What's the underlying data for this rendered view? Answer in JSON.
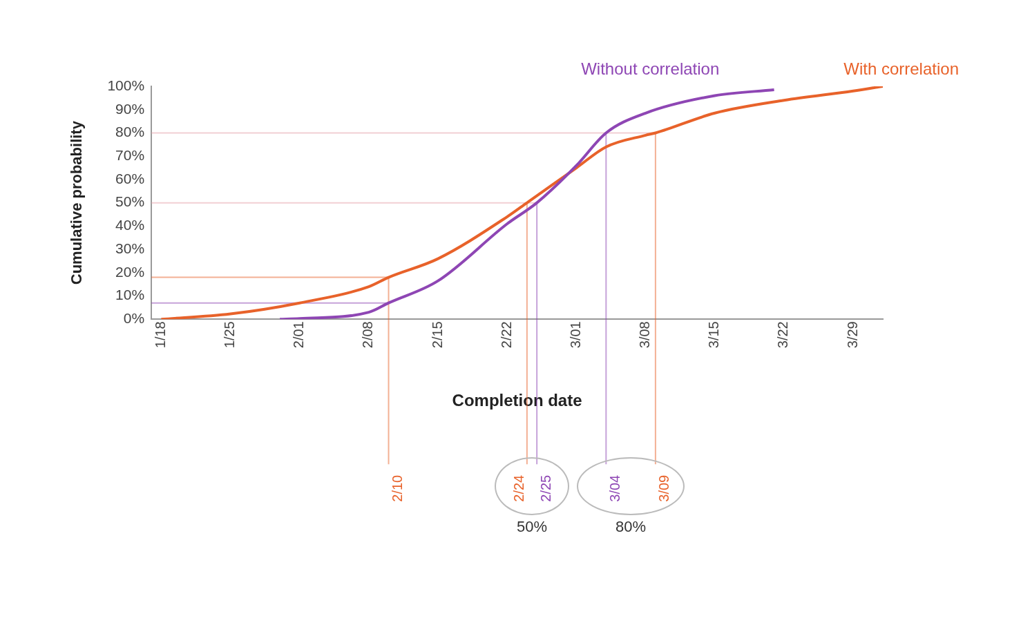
{
  "chart_data": {
    "type": "line",
    "xlabel": "Completion date",
    "ylabel": "Cumulative probability",
    "series": [
      {
        "name": "Without correlation",
        "color": "#8e46b4",
        "x": [
          "--01-30",
          "--02-01",
          "--02-08",
          "--02-10",
          "--02-15",
          "--02-22",
          "--02-25",
          "--03-01",
          "--03-04",
          "--03-08",
          "--03-15",
          "--03-21"
        ],
        "values": [
          0,
          0.3,
          3,
          7,
          16.5,
          41,
          50,
          66,
          80,
          88.5,
          96,
          98.5
        ]
      },
      {
        "name": "With correlation",
        "color": "#e8622a",
        "x": [
          "--01-18",
          "--01-25",
          "--02-01",
          "--02-08",
          "--02-10",
          "--02-15",
          "--02-22",
          "--02-24",
          "--03-01",
          "--03-04",
          "--03-08",
          "--03-09",
          "--03-15",
          "--03-22",
          "--03-29",
          "--04-01"
        ],
        "values": [
          0,
          2.3,
          7,
          14,
          18,
          26,
          44,
          50,
          65,
          74,
          79,
          80,
          88.5,
          94,
          98,
          100
        ]
      }
    ],
    "xlim": [
      "--01-17",
      "--04-01"
    ],
    "xticks": [
      {
        "value": "--01-18",
        "label": "1/18"
      },
      {
        "value": "--01-25",
        "label": "1/25"
      },
      {
        "value": "--02-01",
        "label": "2/01"
      },
      {
        "value": "--02-08",
        "label": "2/08"
      },
      {
        "value": "--02-15",
        "label": "2/15"
      },
      {
        "value": "--02-22",
        "label": "2/22"
      },
      {
        "value": "--03-01",
        "label": "3/01"
      },
      {
        "value": "--03-08",
        "label": "3/08"
      },
      {
        "value": "--03-15",
        "label": "3/15"
      },
      {
        "value": "--03-22",
        "label": "3/22"
      },
      {
        "value": "--03-29",
        "label": "3/29"
      }
    ],
    "ylim": [
      0,
      100
    ],
    "yticks": [
      {
        "value": 0,
        "label": "0%"
      },
      {
        "value": 10,
        "label": "10%"
      },
      {
        "value": 20,
        "label": "20%"
      },
      {
        "value": 30,
        "label": "30%"
      },
      {
        "value": 40,
        "label": "40%"
      },
      {
        "value": 50,
        "label": "50%"
      },
      {
        "value": 60,
        "label": "60%"
      },
      {
        "value": 70,
        "label": "70%"
      },
      {
        "value": 80,
        "label": "80%"
      },
      {
        "value": 90,
        "label": "90%"
      },
      {
        "value": 100,
        "label": "100%"
      }
    ],
    "ref_lines": [
      {
        "axis": "y",
        "value": 80,
        "color": "#e6a0a8"
      },
      {
        "axis": "y",
        "value": 50,
        "color": "#e6a0a8"
      },
      {
        "axis": "y",
        "value": 18,
        "color": "#e8622a"
      },
      {
        "axis": "y",
        "value": 7,
        "color": "#8e46b4"
      },
      {
        "axis": "x",
        "value": "--02-10",
        "label": "2/10",
        "color": "#e8622a"
      },
      {
        "axis": "x",
        "value": "--02-24",
        "label": "2/24",
        "color": "#e8622a"
      },
      {
        "axis": "x",
        "value": "--02-25",
        "label": "2/25",
        "color": "#8e46b4"
      },
      {
        "axis": "x",
        "value": "--03-04",
        "label": "3/04",
        "color": "#8e46b4"
      },
      {
        "axis": "x",
        "value": "--03-09",
        "label": "3/09",
        "color": "#e8622a"
      }
    ],
    "annotations": [
      "50%",
      "80%"
    ],
    "grid": false,
    "legend": false,
    "marker": "none",
    "line_style": "solid"
  }
}
